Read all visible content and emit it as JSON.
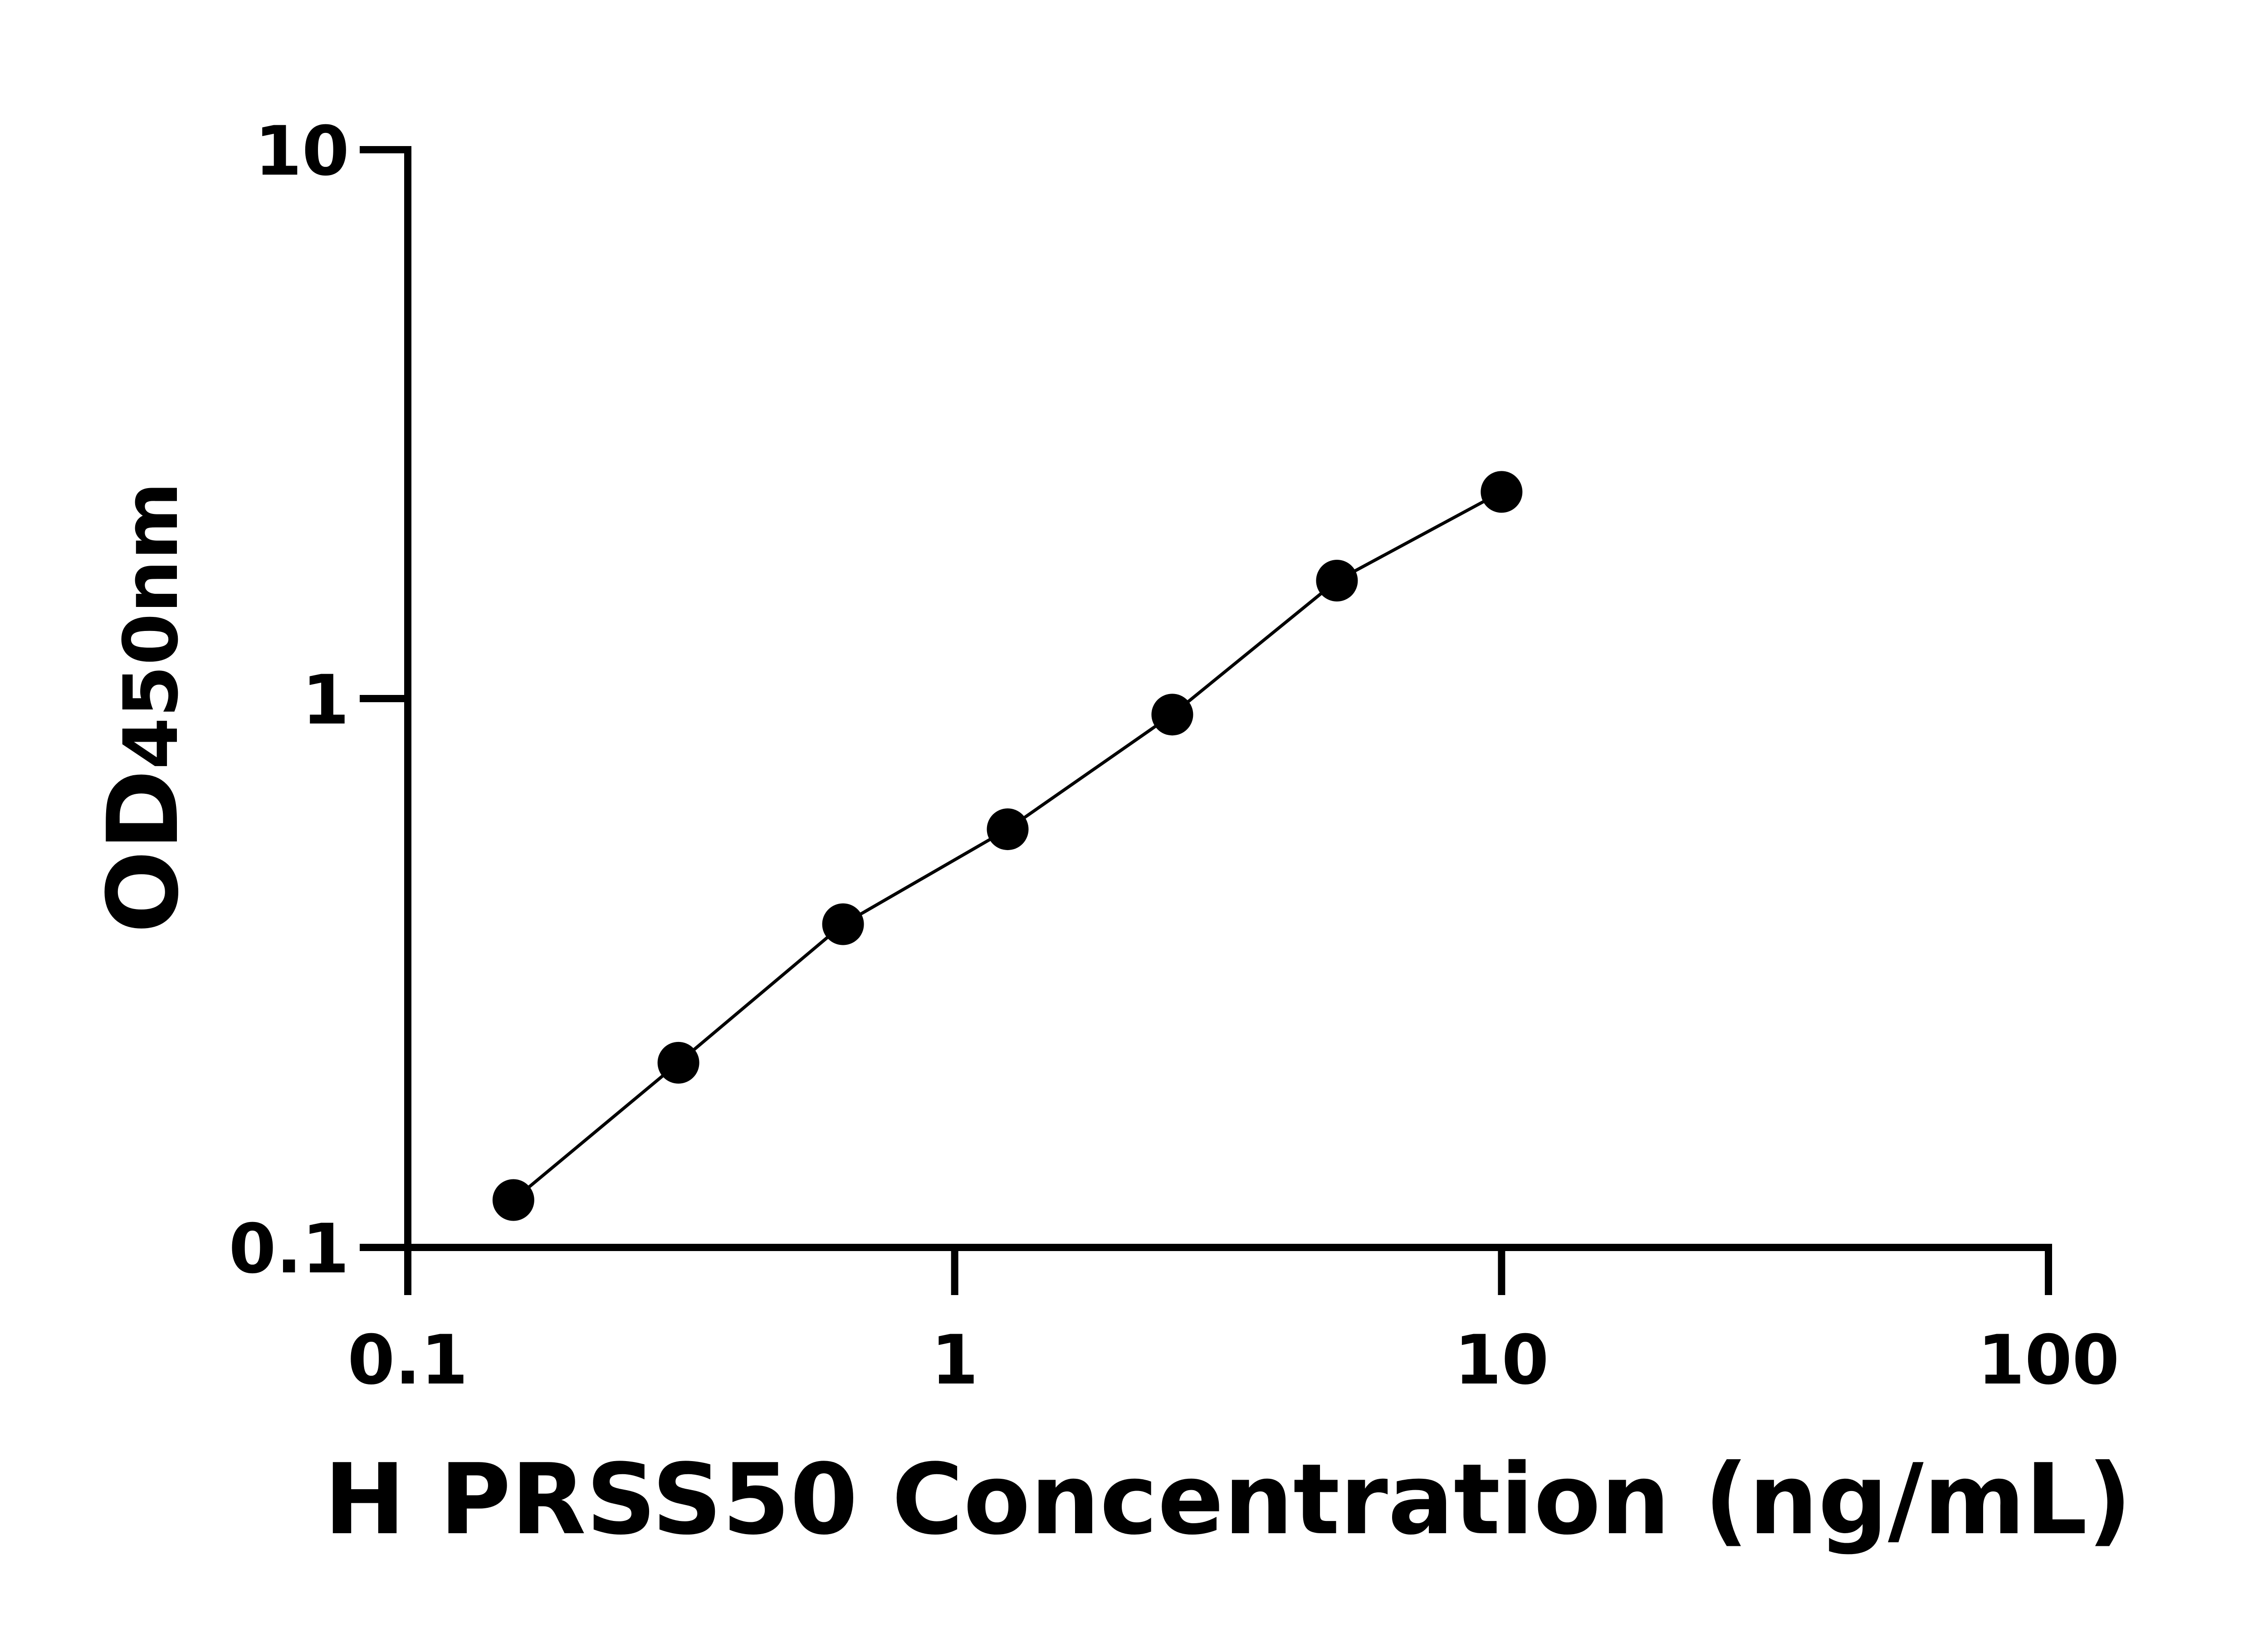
{
  "chart_data": {
    "type": "scatter",
    "xlabel": "H PRSS50 Concentration (ng/mL)",
    "ylabel": {
      "main": "OD",
      "sub": "450nm"
    },
    "x_scale": "log",
    "y_scale": "log",
    "xlim": [
      0.1,
      100
    ],
    "ylim": [
      0.1,
      10
    ],
    "x_ticks": [
      "0.1",
      "1",
      "10",
      "100"
    ],
    "y_ticks": [
      "0.1",
      "1",
      "10"
    ],
    "grid": false,
    "fit_line": true,
    "colors": {
      "points": "#000000",
      "line": "#000000"
    },
    "series": [
      {
        "x": [
          0.156,
          0.3125,
          0.625,
          1.25,
          2.5,
          5,
          10
        ],
        "y": [
          0.122,
          0.217,
          0.388,
          0.578,
          0.935,
          1.64,
          2.38
        ]
      }
    ]
  }
}
